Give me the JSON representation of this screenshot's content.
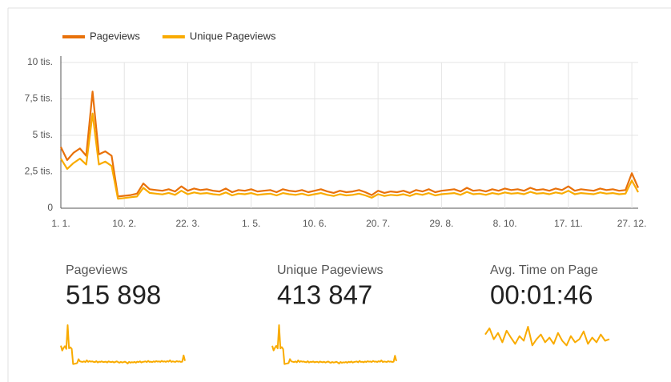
{
  "chart_data": {
    "type": "line",
    "x": [
      "1. 1.",
      "5. 1.",
      "9. 1.",
      "13. 1.",
      "17. 1.",
      "21. 1.",
      "25. 1.",
      "29. 1.",
      "2. 2.",
      "6. 2.",
      "10. 2.",
      "14. 2.",
      "18. 2.",
      "22. 2.",
      "26. 2.",
      "2. 3.",
      "6. 3.",
      "10. 3.",
      "14. 3.",
      "18. 3.",
      "22. 3.",
      "26. 3.",
      "30. 3.",
      "3. 4.",
      "7. 4.",
      "11. 4.",
      "15. 4.",
      "19. 4.",
      "23. 4.",
      "27. 4.",
      "1. 5.",
      "5. 5.",
      "9. 5.",
      "13. 5.",
      "17. 5.",
      "21. 5.",
      "25. 5.",
      "29. 5.",
      "2. 6.",
      "6. 6.",
      "10. 6.",
      "14. 6.",
      "18. 6.",
      "22. 6.",
      "26. 6.",
      "30. 6.",
      "4. 7.",
      "8. 7.",
      "12. 7.",
      "16. 7.",
      "20. 7.",
      "24. 7.",
      "28. 7.",
      "1. 8.",
      "5. 8.",
      "9. 8.",
      "13. 8.",
      "17. 8.",
      "21. 8.",
      "25. 8.",
      "29. 8.",
      "2. 9.",
      "6. 9.",
      "10. 9.",
      "14. 9.",
      "18. 9.",
      "22. 9.",
      "26. 9.",
      "30. 9.",
      "4. 10.",
      "8. 10.",
      "12. 10.",
      "16. 10.",
      "20. 10.",
      "24. 10.",
      "28. 10.",
      "1. 11.",
      "5. 11.",
      "9. 11.",
      "13. 11.",
      "17. 11.",
      "21. 11.",
      "25. 11.",
      "29. 11.",
      "3. 12.",
      "7. 12.",
      "11. 12.",
      "15. 12.",
      "19. 12.",
      "23. 12.",
      "27. 12.",
      "31. 12."
    ],
    "xticks": [
      "1. 1.",
      "10. 2.",
      "22. 3.",
      "1. 5.",
      "10. 6.",
      "20. 7.",
      "29. 8.",
      "8. 10.",
      "17. 11.",
      "27. 12."
    ],
    "series": [
      {
        "name": "Pageviews",
        "color": "#e8710a",
        "values": [
          4200,
          3300,
          3800,
          4100,
          3600,
          8000,
          3700,
          3900,
          3600,
          800,
          850,
          900,
          1000,
          1700,
          1300,
          1250,
          1200,
          1300,
          1150,
          1500,
          1200,
          1350,
          1250,
          1300,
          1200,
          1150,
          1350,
          1100,
          1250,
          1200,
          1300,
          1150,
          1200,
          1250,
          1100,
          1300,
          1200,
          1150,
          1250,
          1100,
          1200,
          1300,
          1150,
          1050,
          1200,
          1100,
          1150,
          1250,
          1100,
          900,
          1200,
          1050,
          1150,
          1100,
          1200,
          1050,
          1250,
          1150,
          1300,
          1100,
          1200,
          1250,
          1300,
          1150,
          1400,
          1200,
          1250,
          1150,
          1300,
          1200,
          1350,
          1250,
          1300,
          1200,
          1400,
          1250,
          1300,
          1200,
          1350,
          1250,
          1500,
          1200,
          1300,
          1250,
          1200,
          1350,
          1250,
          1300,
          1200,
          1250,
          2400,
          1400
        ]
      },
      {
        "name": "Unique Pageviews",
        "color": "#f9ab00",
        "values": [
          3400,
          2700,
          3100,
          3400,
          3000,
          6500,
          3000,
          3200,
          2900,
          650,
          700,
          750,
          800,
          1400,
          1050,
          1000,
          950,
          1050,
          920,
          1200,
          960,
          1080,
          1000,
          1040,
          960,
          920,
          1080,
          880,
          1000,
          960,
          1040,
          920,
          960,
          1000,
          880,
          1040,
          960,
          920,
          1000,
          880,
          960,
          1040,
          920,
          840,
          960,
          880,
          920,
          1000,
          880,
          720,
          960,
          840,
          920,
          880,
          960,
          840,
          1000,
          920,
          1040,
          880,
          960,
          1000,
          1040,
          920,
          1120,
          960,
          1000,
          920,
          1040,
          960,
          1080,
          1000,
          1040,
          960,
          1120,
          1000,
          1040,
          960,
          1080,
          1000,
          1200,
          960,
          1040,
          1000,
          960,
          1080,
          1000,
          1040,
          960,
          1000,
          1900,
          1100
        ]
      }
    ],
    "ylim": [
      0,
      10000
    ],
    "yticks": [
      0,
      {
        "value": 2500,
        "label": "2,5 tis."
      },
      {
        "value": 5000,
        "label": "5 tis."
      },
      {
        "value": 7500,
        "label": "7,5 tis."
      },
      {
        "value": 10000,
        "label": "10 tis."
      }
    ],
    "grid": true
  },
  "scorecards": [
    {
      "label": "Pageviews",
      "value": "515 898"
    },
    {
      "label": "Unique Pageviews",
      "value": "413 847"
    },
    {
      "label": "Avg. Time on Page",
      "value": "00:01:46",
      "color": "#f9ab00",
      "sparkline": [
        110,
        118,
        104,
        112,
        100,
        115,
        106,
        98,
        108,
        102,
        120,
        96,
        104,
        110,
        100,
        106,
        98,
        112,
        102,
        96,
        108,
        100,
        104,
        114,
        98,
        106,
        100,
        110,
        102,
        104
      ]
    }
  ]
}
